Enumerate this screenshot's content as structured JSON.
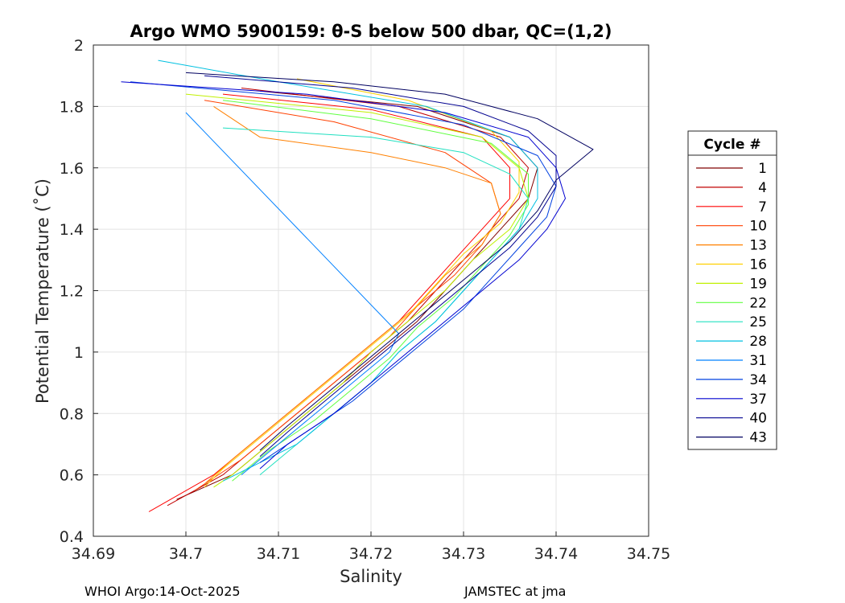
{
  "chart_data": {
    "type": "line",
    "title": "Argo WMO 5900159: θ-S below 500 dbar,  QC=(1,2)",
    "xlabel": "Salinity",
    "ylabel": "Potential Temperature (˚C)",
    "xlim": [
      34.69,
      34.75
    ],
    "ylim": [
      0.4,
      2.0
    ],
    "xticks": [
      "34.69",
      "34.7",
      "34.71",
      "34.72",
      "34.73",
      "34.74",
      "34.75"
    ],
    "yticks": [
      "0.4",
      "0.6",
      "0.8",
      "1",
      "1.2",
      "1.4",
      "1.6",
      "1.8",
      "2"
    ],
    "grid": true,
    "legend": {
      "title": "Cycle #",
      "placement": "right-outside",
      "entries": [
        "1",
        "4",
        "7",
        "10",
        "13",
        "16",
        "19",
        "22",
        "25",
        "28",
        "31",
        "34",
        "37",
        "40",
        "43"
      ],
      "colors": [
        "#800000",
        "#C00000",
        "#FF0000",
        "#FF4000",
        "#FF8000",
        "#FFD000",
        "#C0F000",
        "#60FF40",
        "#20E0C0",
        "#00C0E0",
        "#0080FF",
        "#0040E0",
        "#0000D0",
        "#000090",
        "#000060"
      ]
    },
    "series": [
      {
        "name": "1",
        "theta": [
          1.85,
          1.8,
          1.7,
          1.6,
          1.5,
          1.4,
          1.3,
          1.2,
          1.1,
          1.0,
          0.9,
          0.8,
          0.7,
          0.6,
          0.52
        ],
        "salinity": [
          34.708,
          34.725,
          34.735,
          34.738,
          34.737,
          34.734,
          34.731,
          34.728,
          34.725,
          34.721,
          34.717,
          34.713,
          34.709,
          34.705,
          34.699
        ]
      },
      {
        "name": "4",
        "theta": [
          1.86,
          1.8,
          1.7,
          1.6,
          1.5,
          1.4,
          1.3,
          1.2,
          1.1,
          1.0,
          0.9,
          0.8,
          0.7,
          0.6,
          0.5
        ],
        "salinity": [
          34.706,
          34.723,
          34.734,
          34.737,
          34.736,
          34.733,
          34.73,
          34.727,
          34.724,
          34.72,
          34.716,
          34.712,
          34.708,
          34.704,
          34.698
        ]
      },
      {
        "name": "7",
        "theta": [
          1.84,
          1.79,
          1.7,
          1.6,
          1.5,
          1.4,
          1.3,
          1.2,
          1.1,
          1.0,
          0.9,
          0.8,
          0.7,
          0.6,
          0.48
        ],
        "salinity": [
          34.704,
          34.72,
          34.732,
          34.735,
          34.735,
          34.732,
          34.729,
          34.726,
          34.723,
          34.719,
          34.715,
          34.711,
          34.707,
          34.703,
          34.696
        ]
      },
      {
        "name": "10",
        "theta": [
          1.82,
          1.75,
          1.65,
          1.55,
          1.45,
          1.35,
          1.25,
          1.15,
          1.05,
          0.95,
          0.85,
          0.75,
          0.65,
          0.55
        ],
        "salinity": [
          34.702,
          34.716,
          34.728,
          34.733,
          34.734,
          34.732,
          34.729,
          34.725,
          34.722,
          34.718,
          34.714,
          34.71,
          34.706,
          34.701
        ]
      },
      {
        "name": "13",
        "theta": [
          1.8,
          1.7,
          1.65,
          1.6,
          1.55,
          1.45,
          1.35,
          1.25,
          1.15,
          1.05,
          0.95,
          0.85,
          0.75,
          0.65,
          0.57
        ],
        "salinity": [
          34.703,
          34.708,
          34.72,
          34.728,
          34.733,
          34.734,
          34.732,
          34.728,
          34.725,
          34.721,
          34.717,
          34.713,
          34.709,
          34.705,
          34.702
        ]
      },
      {
        "name": "16",
        "theta": [
          1.89,
          1.82,
          1.72,
          1.62,
          1.52,
          1.42,
          1.32,
          1.22,
          1.12,
          1.02,
          0.92,
          0.82,
          0.72,
          0.62,
          0.56
        ],
        "salinity": [
          34.712,
          34.724,
          34.733,
          34.736,
          34.736,
          34.734,
          34.73,
          34.727,
          34.724,
          34.72,
          34.716,
          34.712,
          34.708,
          34.704,
          34.702
        ]
      },
      {
        "name": "19",
        "theta": [
          1.84,
          1.78,
          1.7,
          1.6,
          1.5,
          1.4,
          1.3,
          1.2,
          1.1,
          1.0,
          0.9,
          0.8,
          0.7,
          0.6,
          0.56
        ],
        "salinity": [
          34.7,
          34.72,
          34.732,
          34.736,
          34.737,
          34.735,
          34.731,
          34.728,
          34.724,
          34.72,
          34.717,
          34.713,
          34.709,
          34.705,
          34.703
        ]
      },
      {
        "name": "22",
        "theta": [
          1.82,
          1.76,
          1.68,
          1.58,
          1.48,
          1.38,
          1.28,
          1.18,
          1.08,
          0.98,
          0.88,
          0.78,
          0.68,
          0.58
        ],
        "salinity": [
          34.704,
          34.72,
          34.733,
          34.737,
          34.737,
          34.735,
          34.732,
          34.729,
          34.725,
          34.722,
          34.718,
          34.714,
          34.709,
          34.705
        ]
      },
      {
        "name": "25",
        "theta": [
          1.73,
          1.7,
          1.65,
          1.58,
          1.5,
          1.4,
          1.3,
          1.2,
          1.1,
          1.0,
          0.9,
          0.8,
          0.7,
          0.6
        ],
        "salinity": [
          34.704,
          34.72,
          34.73,
          34.735,
          34.737,
          34.736,
          34.733,
          34.73,
          34.727,
          34.723,
          34.72,
          34.716,
          34.712,
          34.708
        ]
      },
      {
        "name": "28",
        "theta": [
          1.95,
          1.88,
          1.8,
          1.7,
          1.6,
          1.5,
          1.4,
          1.3,
          1.2,
          1.1,
          1.0,
          0.9,
          0.8,
          0.7,
          0.58
        ],
        "salinity": [
          34.697,
          34.71,
          34.726,
          34.735,
          34.738,
          34.738,
          34.736,
          34.733,
          34.73,
          34.727,
          34.723,
          34.72,
          34.716,
          34.712,
          34.704
        ]
      },
      {
        "name": "31",
        "theta": [
          1.78,
          1.06,
          1.0,
          0.9,
          0.8,
          0.7,
          0.6
        ],
        "salinity": [
          34.7,
          34.723,
          34.722,
          34.718,
          34.714,
          34.71,
          34.706
        ]
      },
      {
        "name": "34",
        "theta": [
          1.88,
          1.82,
          1.74,
          1.64,
          1.54,
          1.44,
          1.34,
          1.24,
          1.14,
          1.04,
          0.94,
          0.84,
          0.74,
          0.64
        ],
        "salinity": [
          34.694,
          34.716,
          34.73,
          34.738,
          34.74,
          34.739,
          34.736,
          34.733,
          34.73,
          34.726,
          34.722,
          34.718,
          34.713,
          34.708
        ]
      },
      {
        "name": "37",
        "theta": [
          1.88,
          1.84,
          1.78,
          1.7,
          1.6,
          1.5,
          1.4,
          1.3,
          1.2,
          1.1,
          1.0,
          0.9,
          0.8,
          0.7,
          0.62
        ],
        "salinity": [
          34.693,
          34.713,
          34.728,
          34.737,
          34.74,
          34.741,
          34.739,
          34.736,
          34.732,
          34.728,
          34.724,
          34.72,
          34.716,
          34.711,
          34.708
        ]
      },
      {
        "name": "40",
        "theta": [
          1.9,
          1.86,
          1.8,
          1.72,
          1.64,
          1.54,
          1.44,
          1.34,
          1.24,
          1.14,
          1.04,
          0.94,
          0.84,
          0.74,
          0.66
        ],
        "salinity": [
          34.702,
          34.718,
          34.73,
          34.737,
          34.74,
          34.74,
          34.738,
          34.735,
          34.731,
          34.727,
          34.723,
          34.719,
          34.715,
          34.711,
          34.708
        ]
      },
      {
        "name": "43",
        "theta": [
          1.91,
          1.88,
          1.84,
          1.76,
          1.66,
          1.56,
          1.46,
          1.36,
          1.26,
          1.16,
          1.06,
          0.96,
          0.86,
          0.76,
          0.68
        ],
        "salinity": [
          34.7,
          34.716,
          34.728,
          34.738,
          34.744,
          34.74,
          34.738,
          34.735,
          34.731,
          34.727,
          34.723,
          34.719,
          34.715,
          34.711,
          34.708
        ]
      }
    ]
  },
  "footer": {
    "left": "WHOI Argo:14-Oct-2025",
    "right": "JAMSTEC at jma"
  }
}
